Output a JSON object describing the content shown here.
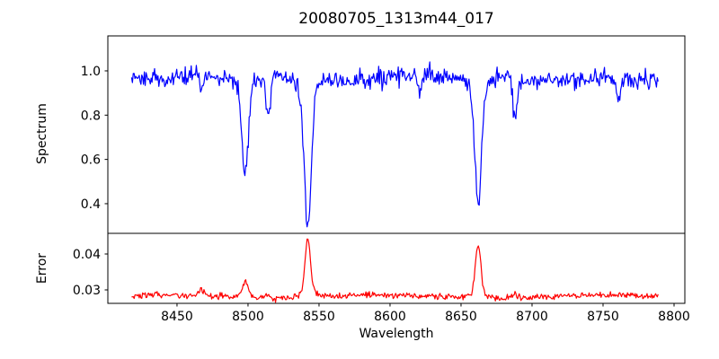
{
  "chart_data": {
    "type": "line",
    "title": "20080705_1313m44_017",
    "xlabel": "Wavelength",
    "xlim": [
      8401.3,
      8807.6
    ],
    "x_ticks": [
      8450,
      8500,
      8550,
      8600,
      8650,
      8700,
      8750,
      8800
    ],
    "x_tick_labels": [
      "8450",
      "8500",
      "8550",
      "8600",
      "8650",
      "8700",
      "8750",
      "8800"
    ],
    "x_data_range": [
      8418,
      8789
    ],
    "x_step": 0.6,
    "background": "#ffffff",
    "grid": false,
    "legend": false,
    "panels": [
      {
        "name": "spectrum",
        "ylabel": "Spectrum",
        "color": "#0000ff",
        "ylim": [
          0.266,
          1.158
        ],
        "y_ticks": [
          0.4,
          0.6,
          0.8,
          1.0
        ],
        "y_tick_labels": [
          "0.4",
          "0.6",
          "0.8",
          "1.0"
        ],
        "continuum": 0.968,
        "noise_sigma": 0.02,
        "lowfreq_amplitude": 0.01,
        "absorption_lines": [
          {
            "center": 8498.0,
            "depth": 0.39,
            "sigma": 2.2
          },
          {
            "center": 8498.0,
            "depth": 0.04,
            "sigma": 5.0
          },
          {
            "center": 8542.1,
            "depth": 0.6,
            "sigma": 2.4
          },
          {
            "center": 8542.1,
            "depth": 0.06,
            "sigma": 6.0
          },
          {
            "center": 8662.1,
            "depth": 0.54,
            "sigma": 2.3
          },
          {
            "center": 8662.1,
            "depth": 0.05,
            "sigma": 6.0
          },
          {
            "center": 8514.0,
            "depth": 0.15,
            "sigma": 1.4
          },
          {
            "center": 8688.0,
            "depth": 0.2,
            "sigma": 1.5
          },
          {
            "center": 8467.0,
            "depth": 0.08,
            "sigma": 1.2
          },
          {
            "center": 8621.0,
            "depth": 0.09,
            "sigma": 1.1
          },
          {
            "center": 8761.0,
            "depth": 0.09,
            "sigma": 1.2
          }
        ],
        "line_minima": {
          "8498": 0.54,
          "8542": 0.32,
          "8662": 0.38
        }
      },
      {
        "name": "error",
        "ylabel": "Error",
        "color": "#ff0000",
        "ylim": [
          0.02625,
          0.04575
        ],
        "y_ticks": [
          0.03,
          0.04
        ],
        "y_tick_labels": [
          "0.03",
          "0.04"
        ],
        "baseline": 0.0282,
        "noise_sigma": 0.00042,
        "lowfreq_amplitude": 0.0004,
        "peaks": [
          {
            "center": 8498.0,
            "height": 0.0045,
            "sigma": 2.2
          },
          {
            "center": 8542.1,
            "height": 0.0145,
            "sigma": 1.8
          },
          {
            "center": 8542.1,
            "height": 0.002,
            "sigma": 4.5
          },
          {
            "center": 8662.1,
            "height": 0.0135,
            "sigma": 1.8
          },
          {
            "center": 8662.1,
            "height": 0.0018,
            "sigma": 4.5
          },
          {
            "center": 8467.0,
            "height": 0.0016,
            "sigma": 1.5
          },
          {
            "center": 8514.0,
            "height": 0.001,
            "sigma": 1.5
          },
          {
            "center": 8688.0,
            "height": 0.001,
            "sigma": 1.5
          }
        ],
        "peak_maxima": {
          "8498": 0.033,
          "8542": 0.0447,
          "8662": 0.0437
        }
      }
    ]
  }
}
